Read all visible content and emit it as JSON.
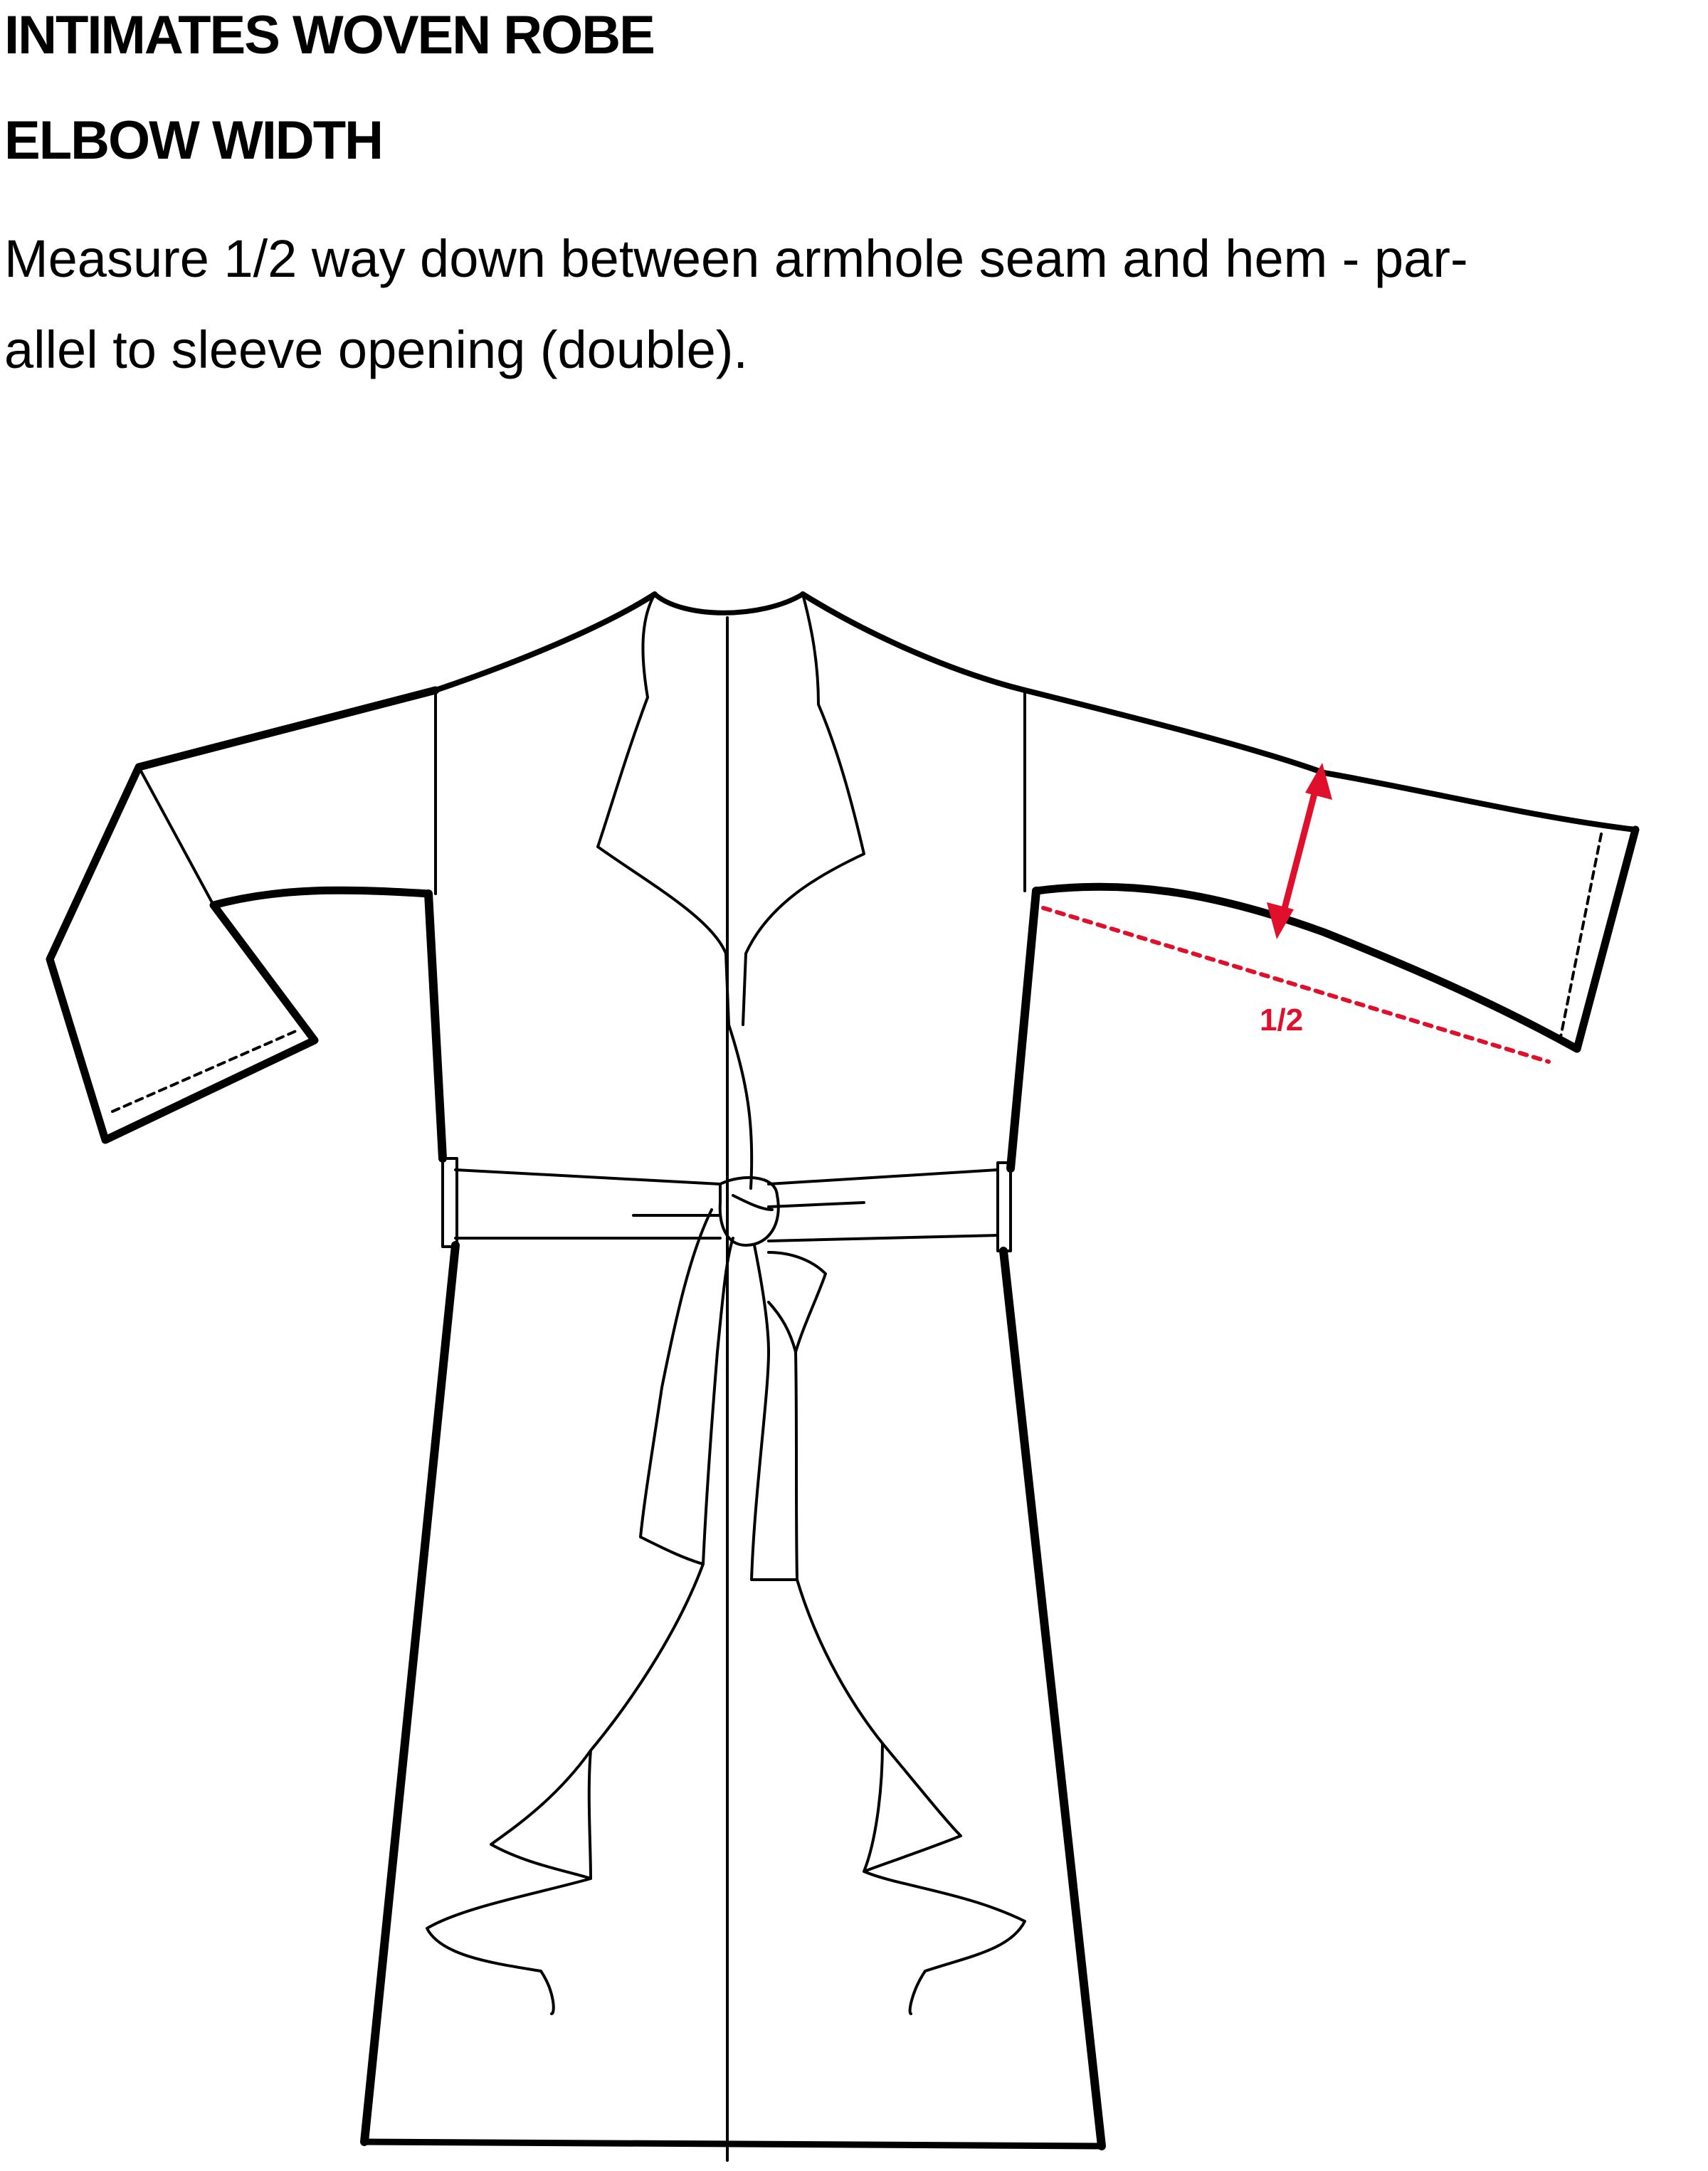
{
  "header": {
    "title": "INTIMATES WOVEN ROBE",
    "subtitle": "ELBOW WIDTH"
  },
  "instructions": {
    "line1": "Measure 1/2 way down between armhole seam and hem - par-",
    "line2": "allel to sleeve opening (double)."
  },
  "diagram": {
    "garment": "robe",
    "measurement_label": "1/2",
    "accent_color": "#e0102c",
    "icons": [
      "double-arrow-icon",
      "dotted-guide-line"
    ]
  }
}
